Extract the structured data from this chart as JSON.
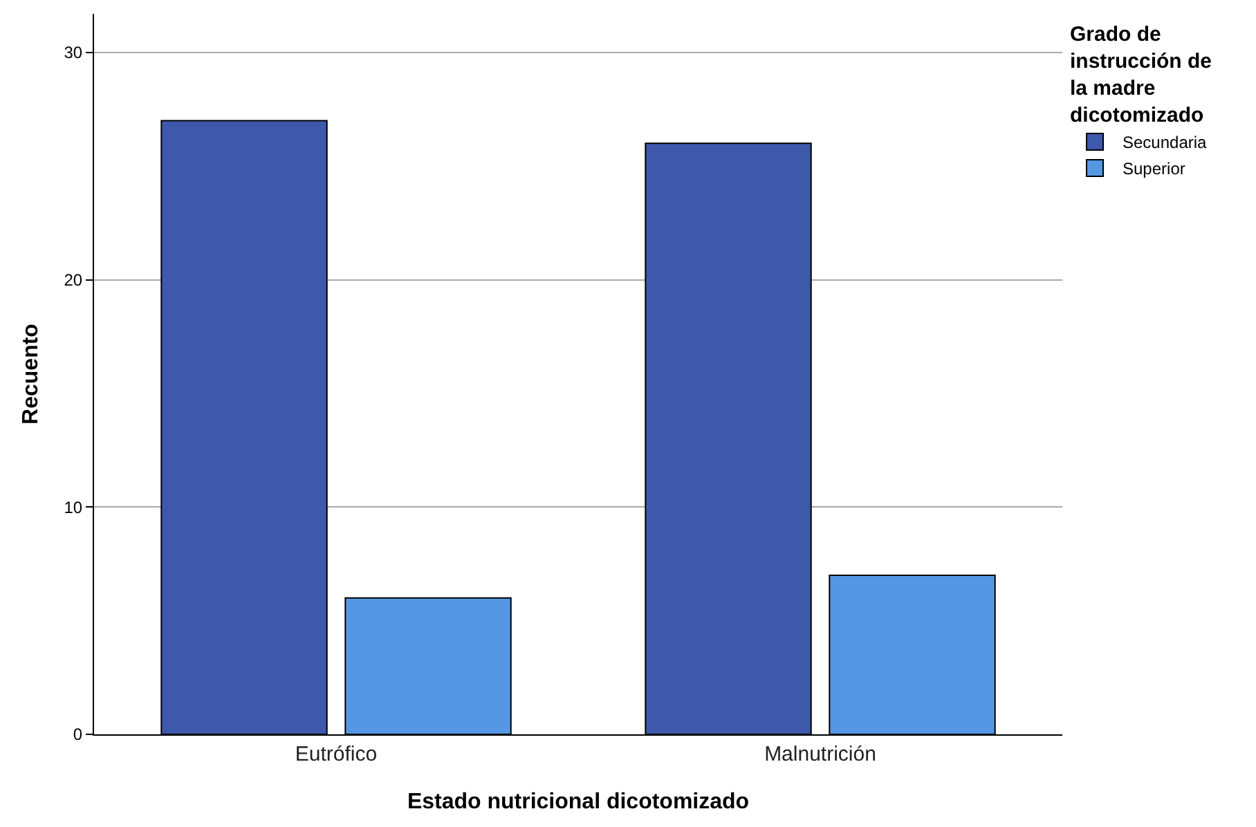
{
  "chart_data": {
    "type": "bar",
    "xlabel": "Estado nutricional dicotomizado",
    "ylabel": "Recuento",
    "legend_title": "Grado de instrucción de la madre dicotomizado",
    "categories": [
      "Eutrófico",
      "Malnutrición"
    ],
    "series": [
      {
        "name": "Secundaria",
        "color": "#3e58ac",
        "values": [
          27,
          26
        ]
      },
      {
        "name": "Superior",
        "color": "#5597e3",
        "values": [
          6,
          7
        ]
      }
    ],
    "ylim": [
      0,
      31.7
    ],
    "yticks": [
      0,
      10,
      20,
      30
    ],
    "grid": "y",
    "legend": "top right"
  }
}
